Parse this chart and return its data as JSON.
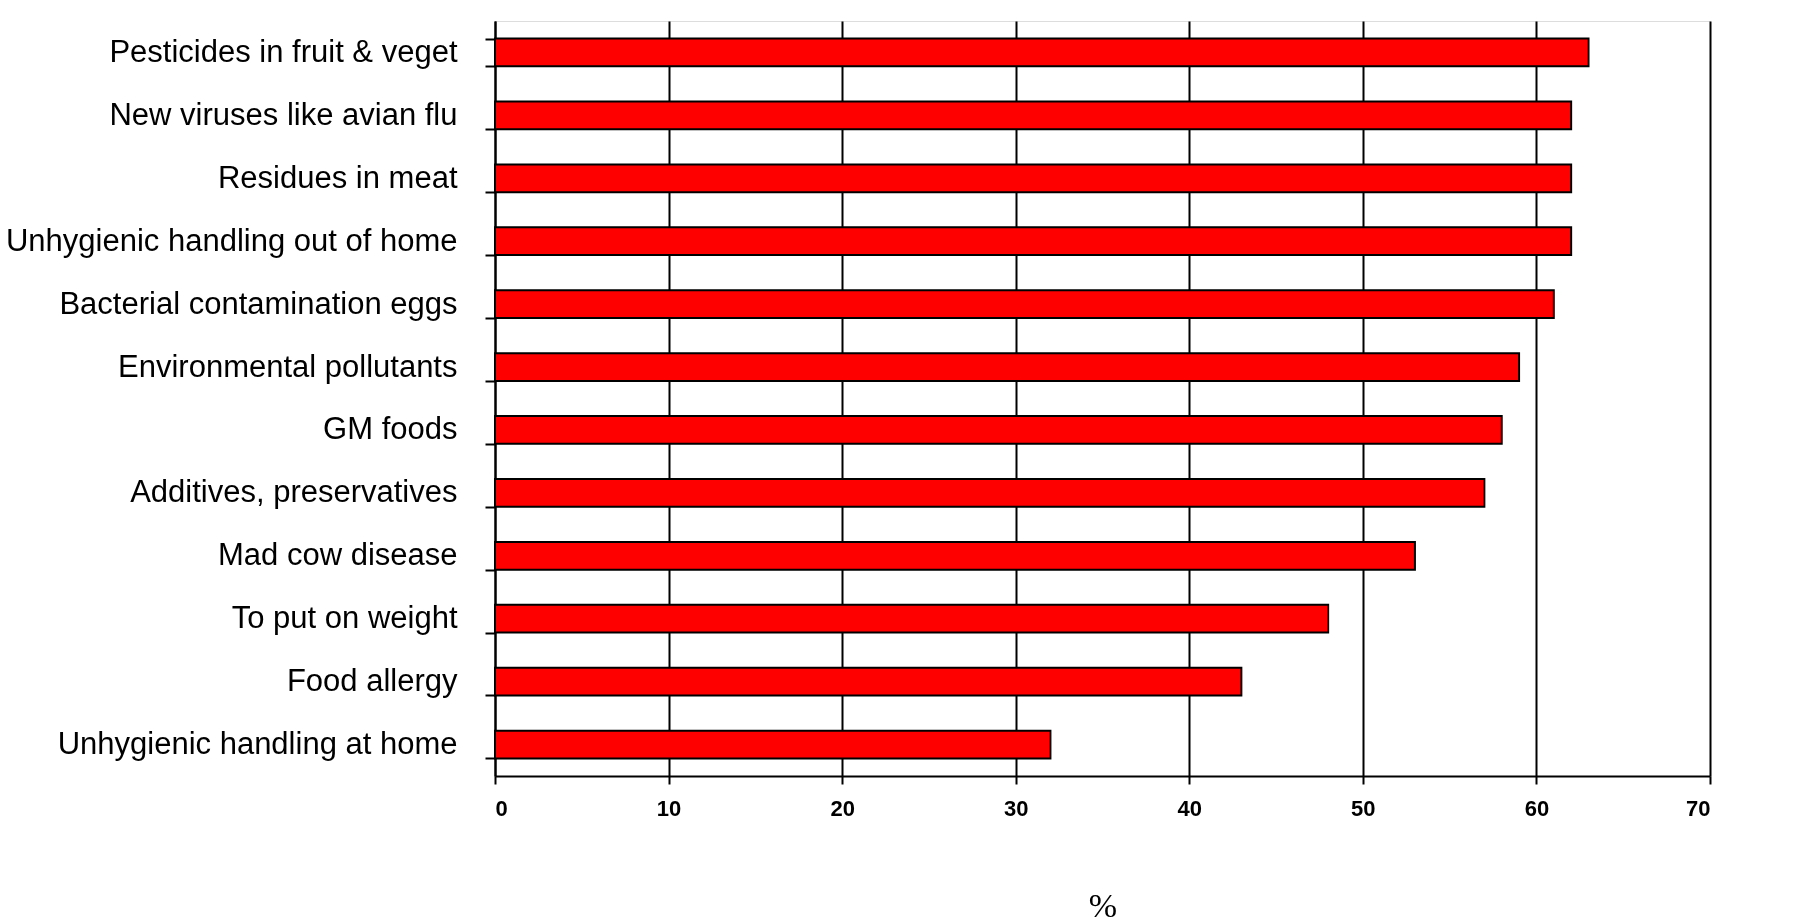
{
  "chart_data": {
    "type": "bar",
    "orientation": "horizontal",
    "xlabel": "%",
    "categories": [
      "Pesticides in fruit & veget",
      "New viruses like avian flu",
      "Residues in meat",
      "Unhygienic handling out of home",
      "Bacterial contamination eggs",
      "Environmental pollutants",
      "GM foods",
      "Additives, preservatives",
      "Mad cow disease",
      "To put on weight",
      "Food allergy",
      "Unhygienic handling at home"
    ],
    "values": [
      63,
      62,
      62,
      62,
      61,
      59,
      58,
      57,
      53,
      48,
      43,
      32
    ],
    "color": "#ff0000",
    "xlim": [
      0,
      70
    ],
    "xticks": [
      0,
      10,
      20,
      30,
      40,
      50,
      60,
      70
    ],
    "grid": "x"
  }
}
